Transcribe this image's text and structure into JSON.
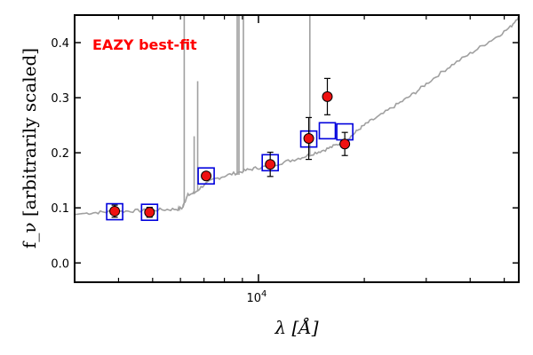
{
  "chart_data": {
    "type": "scatter",
    "title": "",
    "xlabel": "λ [Å]",
    "ylabel": "f_ν [arbitrarily scaled]",
    "xscale": "log",
    "xlim": [
      3000,
      55000
    ],
    "ylim": [
      -0.035,
      0.45
    ],
    "yticks": [
      0.0,
      0.1,
      0.2,
      0.3,
      0.4
    ],
    "ytick_labels": [
      "0.0",
      "0.1",
      "0.2",
      "0.3",
      "0.4"
    ],
    "xticks_major": [
      10000
    ],
    "xtick_labels": [
      "10^4"
    ],
    "xticks_minor": [
      4000,
      5000,
      6000,
      7000,
      8000,
      9000,
      20000,
      30000,
      40000,
      50000
    ],
    "grid": false,
    "annotation": {
      "text": "EAZY best-fit",
      "color": "#ff0000"
    },
    "colors": {
      "template": "#a0a0a0",
      "model": "#0000dd",
      "observed": "#ee1111"
    },
    "template_continuum": [
      [
        3000,
        0.088
      ],
      [
        3200,
        0.09
      ],
      [
        3500,
        0.092
      ],
      [
        3800,
        0.093
      ],
      [
        4200,
        0.094
      ],
      [
        4600,
        0.095
      ],
      [
        5000,
        0.096
      ],
      [
        5500,
        0.097
      ],
      [
        5900,
        0.098
      ],
      [
        6080,
        0.1
      ],
      [
        6150,
        0.11
      ],
      [
        6300,
        0.123
      ],
      [
        6600,
        0.128
      ],
      [
        7000,
        0.142
      ],
      [
        7500,
        0.152
      ],
      [
        8000,
        0.158
      ],
      [
        8600,
        0.163
      ],
      [
        9200,
        0.168
      ],
      [
        9800,
        0.172
      ],
      [
        10500,
        0.175
      ],
      [
        11500,
        0.181
      ],
      [
        12500,
        0.187
      ],
      [
        13500,
        0.193
      ],
      [
        14500,
        0.2
      ],
      [
        15500,
        0.206
      ],
      [
        16500,
        0.213
      ],
      [
        17500,
        0.22
      ],
      [
        18500,
        0.232
      ],
      [
        19500,
        0.245
      ],
      [
        20500,
        0.255
      ],
      [
        22000,
        0.266
      ],
      [
        24000,
        0.282
      ],
      [
        26000,
        0.296
      ],
      [
        28000,
        0.31
      ],
      [
        30000,
        0.325
      ],
      [
        33000,
        0.345
      ],
      [
        36000,
        0.362
      ],
      [
        40000,
        0.38
      ],
      [
        44000,
        0.397
      ],
      [
        48000,
        0.412
      ],
      [
        52000,
        0.428
      ],
      [
        55000,
        0.448
      ]
    ],
    "template_lines": [
      {
        "x": 6150,
        "top": 0.45,
        "base": 0.11
      },
      {
        "x": 6563,
        "top": 0.23,
        "base": 0.125
      },
      {
        "x": 6716,
        "top": 0.33,
        "base": 0.13
      },
      {
        "x": 8700,
        "top": 0.45,
        "base": 0.16
      },
      {
        "x": 8800,
        "top": 0.45,
        "base": 0.16
      },
      {
        "x": 9060,
        "top": 0.45,
        "base": 0.165
      },
      {
        "x": 14000,
        "top": 0.45,
        "base": 0.196
      }
    ],
    "model_photometry": [
      {
        "x": 3900,
        "y": 0.093
      },
      {
        "x": 4900,
        "y": 0.092
      },
      {
        "x": 7100,
        "y": 0.158
      },
      {
        "x": 10800,
        "y": 0.182
      },
      {
        "x": 13900,
        "y": 0.225
      },
      {
        "x": 15700,
        "y": 0.24
      },
      {
        "x": 17600,
        "y": 0.238
      }
    ],
    "observed_photometry": [
      {
        "x": 3900,
        "y": 0.094,
        "err": 0.011
      },
      {
        "x": 4900,
        "y": 0.092,
        "err": 0.009
      },
      {
        "x": 7100,
        "y": 0.158,
        "err": 0.006
      },
      {
        "x": 10800,
        "y": 0.179,
        "err": 0.022
      },
      {
        "x": 13900,
        "y": 0.226,
        "err": 0.038
      },
      {
        "x": 15700,
        "y": 0.302,
        "err": 0.033
      },
      {
        "x": 17600,
        "y": 0.216,
        "err": 0.021
      }
    ]
  }
}
